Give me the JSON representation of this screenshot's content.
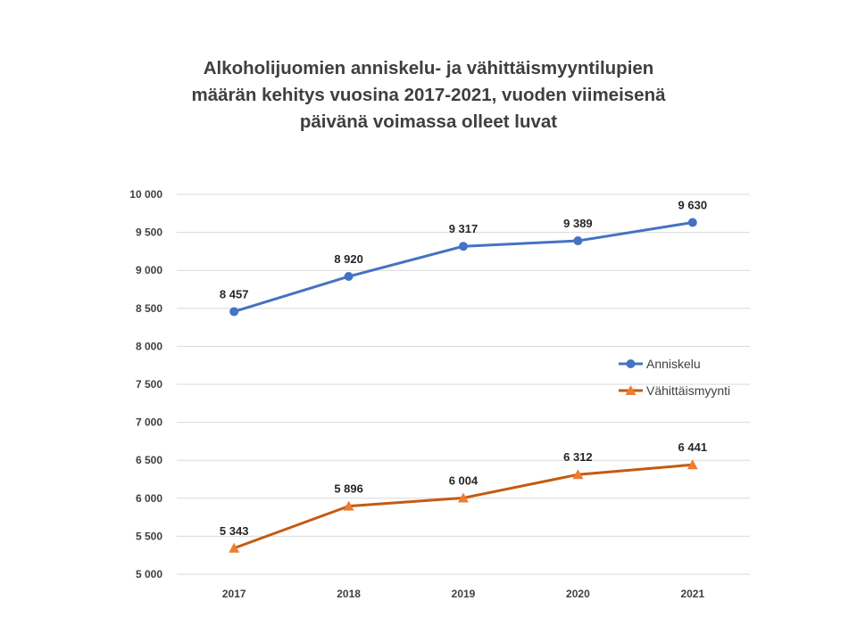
{
  "chart_data": {
    "type": "line",
    "title_lines": [
      "Alkoholijuomien anniskelu- ja vähittäismyyntilupien",
      "määrän kehitys vuosina 2017-2021, vuoden viimeisenä",
      "päivänä voimassa olleet luvat"
    ],
    "xlabel": "",
    "ylabel": "",
    "categories": [
      "2017",
      "2018",
      "2019",
      "2020",
      "2021"
    ],
    "ylim": [
      5000,
      10000
    ],
    "yticks": [
      5000,
      5500,
      6000,
      6500,
      7000,
      7500,
      8000,
      8500,
      9000,
      9500,
      10000
    ],
    "ytick_labels": [
      "5 000",
      "5 500",
      "6 000",
      "6 500",
      "7 000",
      "7 500",
      "8 000",
      "8 500",
      "9 000",
      "9 500",
      "10 000"
    ],
    "grid": true,
    "legend_position": "right",
    "series": [
      {
        "name": "Anniskelu",
        "values": [
          8457,
          8920,
          9317,
          9389,
          9630
        ],
        "labels": [
          "8 457",
          "8 920",
          "9 317",
          "9 389",
          "9 630"
        ],
        "color": "#4472c4",
        "marker": "circle"
      },
      {
        "name": "Vähittäismyynti",
        "values": [
          5343,
          5896,
          6004,
          6312,
          6441
        ],
        "labels": [
          "5 343",
          "5 896",
          "6 004",
          "6 312",
          "6 441"
        ],
        "color": "#c55a11",
        "marker_color": "#ed7d31",
        "marker": "triangle"
      }
    ]
  }
}
